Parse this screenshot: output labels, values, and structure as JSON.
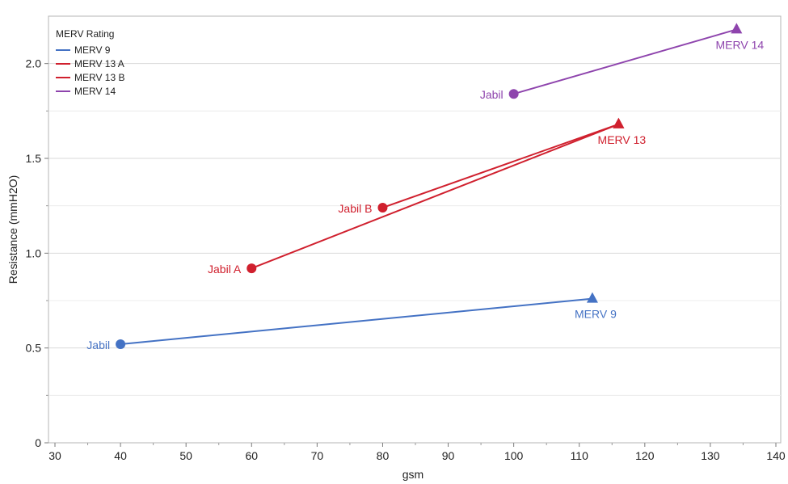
{
  "chart_data": {
    "type": "line",
    "xlabel": "gsm",
    "ylabel": "Resistance (mmH2O)",
    "xlim": [
      30,
      140
    ],
    "ylim": [
      0,
      2.25
    ],
    "x_ticks": [
      30,
      40,
      50,
      60,
      70,
      80,
      90,
      100,
      110,
      120,
      130,
      140
    ],
    "y_ticks": [
      0,
      0.5,
      1.0,
      1.5,
      2.0
    ],
    "y_tick_labels": [
      "0",
      "0.5",
      "1.0",
      "1.5",
      "2.0"
    ],
    "grid": "horizontal",
    "legend": {
      "title": "MERV Rating",
      "position": "top-left",
      "entries": [
        "MERV 9",
        "MERV 13 A",
        "MERV 13 B",
        "MERV 14"
      ]
    },
    "series": [
      {
        "name": "MERV 9",
        "color": "#4472C4",
        "points": [
          {
            "x": 40,
            "y": 0.52,
            "marker": "circle",
            "label": "Jabil",
            "label_side": "left"
          },
          {
            "x": 112,
            "y": 0.76,
            "marker": "triangle",
            "label": "MERV 9",
            "label_side": "below"
          }
        ]
      },
      {
        "name": "MERV 13 A",
        "color": "#D0202E",
        "points": [
          {
            "x": 60,
            "y": 0.92,
            "marker": "circle",
            "label": "Jabil A",
            "label_side": "left"
          },
          {
            "x": 116,
            "y": 1.68,
            "marker": "triangle",
            "label": "MERV 13",
            "label_side": "below"
          }
        ]
      },
      {
        "name": "MERV 13 B",
        "color": "#D0202E",
        "points": [
          {
            "x": 80,
            "y": 1.24,
            "marker": "circle",
            "label": "Jabil B",
            "label_side": "left"
          },
          {
            "x": 116,
            "y": 1.68,
            "marker": "triangle",
            "label": "",
            "label_side": "none"
          }
        ]
      },
      {
        "name": "MERV 14",
        "color": "#8E44AD",
        "points": [
          {
            "x": 100,
            "y": 1.84,
            "marker": "circle",
            "label": "Jabil",
            "label_side": "left"
          },
          {
            "x": 134,
            "y": 2.18,
            "marker": "triangle",
            "label": "MERV 14",
            "label_side": "below"
          }
        ]
      }
    ]
  }
}
